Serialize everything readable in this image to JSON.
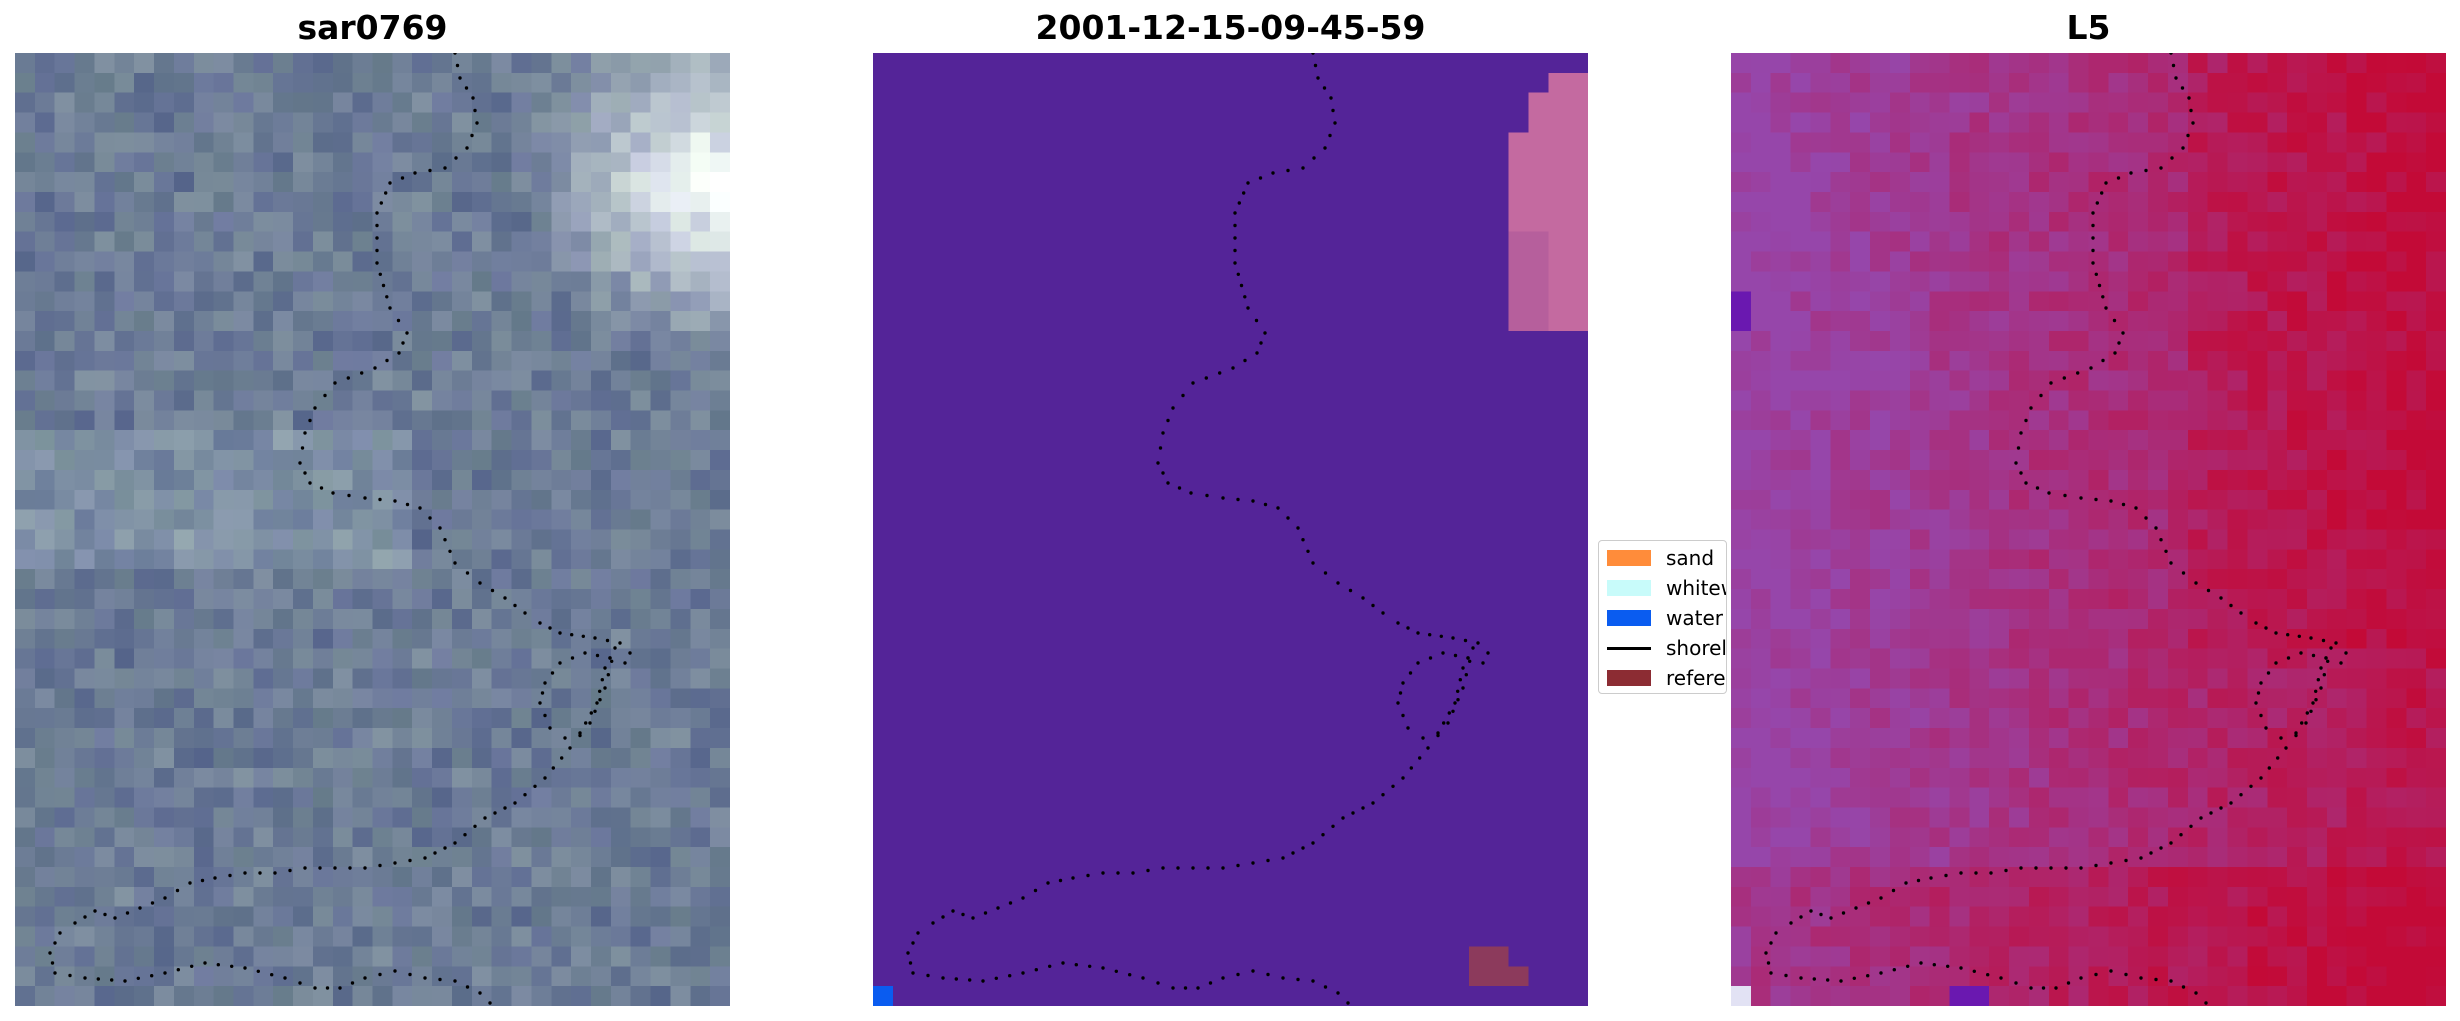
{
  "panels": [
    {
      "id": "p1",
      "title": "sar0769"
    },
    {
      "id": "p2",
      "title": "2001-12-15-09-45-59"
    },
    {
      "id": "p3",
      "title": "L5"
    }
  ],
  "legend": {
    "items": [
      {
        "label": "sand",
        "color": "#ff8c3a",
        "kind": "patch",
        "icon": "sand-swatch-icon"
      },
      {
        "label": "whitew",
        "color": "#c8fbfa",
        "kind": "patch",
        "icon": "whitewater-swatch-icon"
      },
      {
        "label": "water",
        "color": "#0a5cf0",
        "kind": "patch",
        "icon": "water-swatch-icon"
      },
      {
        "label": "shorel",
        "color": "#000000",
        "kind": "line",
        "icon": "shoreline-line-icon"
      },
      {
        "label": "referer",
        "color": "#8c2c33",
        "kind": "patch",
        "icon": "reference-swatch-icon"
      }
    ]
  },
  "colors": {
    "classification_background": "#542498",
    "classification_pink_region": "#c46aa0",
    "reference_patch": "#8c3a5c",
    "water_corner": "#0a5cf0",
    "shoreline_dots": "#000000"
  }
}
